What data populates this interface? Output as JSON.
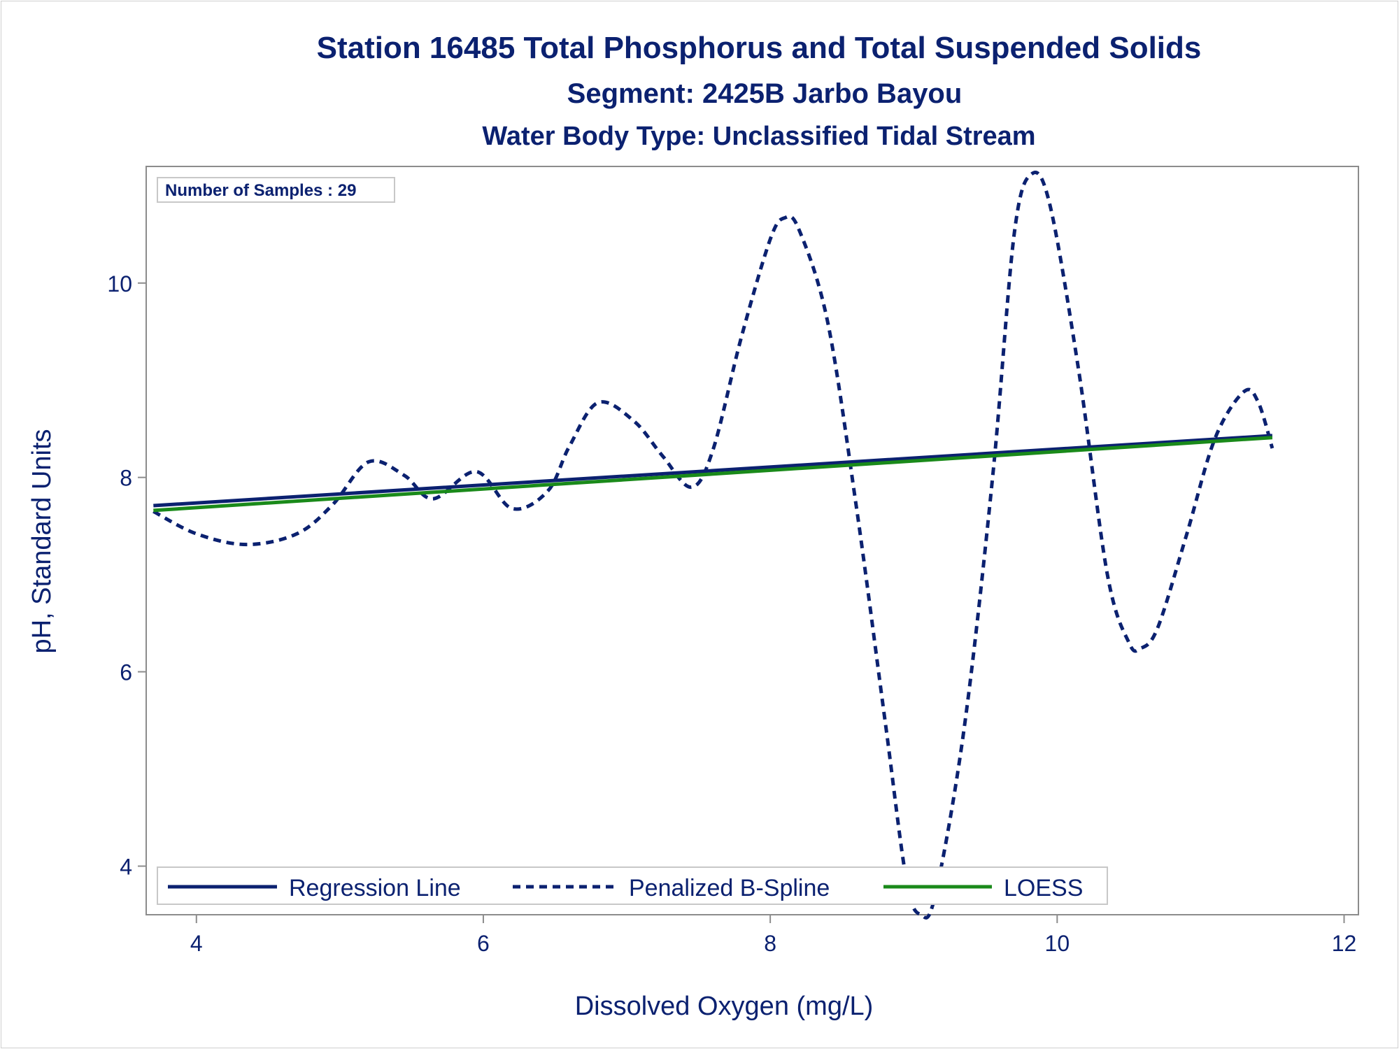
{
  "chart_data": {
    "type": "line",
    "title": "Station 16485  Total Phosphorus and Total Suspended Solids",
    "subtitle": "Segment: 2425B  Jarbo Bayou",
    "subtitle2": "Water Body Type: Unclassified Tidal Stream",
    "inset_label": "Number of Samples : 29",
    "xlabel": "Dissolved Oxygen (mg/L)",
    "ylabel": "pH, Standard Units",
    "xlim": [
      3.65,
      12.1
    ],
    "ylim": [
      3.5,
      11.2
    ],
    "x_ticks": [
      4,
      6,
      8,
      10,
      12
    ],
    "y_ticks": [
      4,
      6,
      8,
      10
    ],
    "grid": false,
    "legend_position": "bottom-inside",
    "series": [
      {
        "name": "Regression Line",
        "style": "solid",
        "color": "#0b2170",
        "points": [
          [
            3.7,
            7.71
          ],
          [
            11.5,
            8.43
          ]
        ]
      },
      {
        "name": "Penalized B-Spline",
        "style": "dashed",
        "color": "#0b2170",
        "points": [
          [
            3.7,
            7.65
          ],
          [
            4.0,
            7.42
          ],
          [
            4.35,
            7.31
          ],
          [
            4.7,
            7.42
          ],
          [
            4.95,
            7.72
          ],
          [
            5.2,
            8.16
          ],
          [
            5.45,
            8.02
          ],
          [
            5.65,
            7.78
          ],
          [
            5.95,
            8.06
          ],
          [
            6.2,
            7.68
          ],
          [
            6.45,
            7.86
          ],
          [
            6.6,
            8.32
          ],
          [
            6.8,
            8.77
          ],
          [
            7.05,
            8.58
          ],
          [
            7.25,
            8.22
          ],
          [
            7.45,
            7.9
          ],
          [
            7.6,
            8.28
          ],
          [
            7.8,
            9.45
          ],
          [
            8.0,
            10.45
          ],
          [
            8.1,
            10.67
          ],
          [
            8.2,
            10.55
          ],
          [
            8.4,
            9.6
          ],
          [
            8.6,
            7.7
          ],
          [
            8.8,
            5.5
          ],
          [
            8.95,
            3.85
          ],
          [
            9.05,
            3.5
          ],
          [
            9.15,
            3.7
          ],
          [
            9.35,
            5.4
          ],
          [
            9.55,
            8.0
          ],
          [
            9.7,
            10.5
          ],
          [
            9.82,
            11.12
          ],
          [
            9.95,
            10.8
          ],
          [
            10.15,
            9.1
          ],
          [
            10.35,
            7.0
          ],
          [
            10.5,
            6.3
          ],
          [
            10.58,
            6.24
          ],
          [
            10.7,
            6.45
          ],
          [
            10.9,
            7.4
          ],
          [
            11.1,
            8.4
          ],
          [
            11.3,
            8.88
          ],
          [
            11.4,
            8.78
          ],
          [
            11.5,
            8.3
          ]
        ]
      },
      {
        "name": "LOESS",
        "style": "solid",
        "color": "#1a8a1a",
        "points": [
          [
            3.7,
            7.66
          ],
          [
            11.5,
            8.41
          ]
        ]
      }
    ]
  }
}
